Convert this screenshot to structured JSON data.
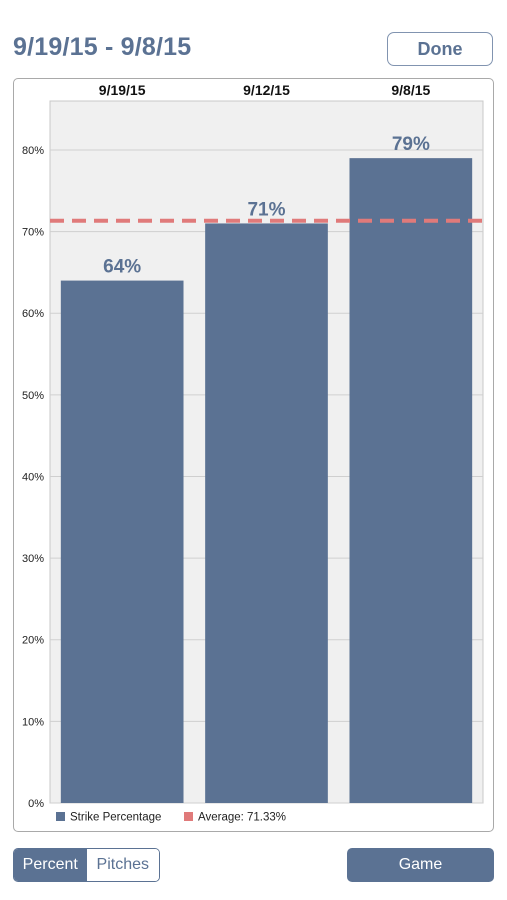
{
  "header": {
    "title": "9/19/15 - 9/8/15",
    "done_label": "Done"
  },
  "colors": {
    "bar": "#5b7293",
    "average_line": "#e07a7a",
    "plot_bg": "#f0f0f0",
    "grid": "#cfcfcf"
  },
  "chart_data": {
    "type": "bar",
    "categories": [
      "9/19/15",
      "9/12/15",
      "9/8/15"
    ],
    "series": [
      {
        "name": "Strike Percentage",
        "values": [
          64,
          71,
          79
        ]
      }
    ],
    "data_labels": [
      "64%",
      "71%",
      "79%"
    ],
    "average": {
      "label": "Average: 71.33%",
      "value": 71.33
    },
    "ylim": [
      0,
      86
    ],
    "yticks": [
      0,
      10,
      20,
      30,
      40,
      50,
      60,
      70,
      80
    ],
    "ytick_labels": [
      "0%",
      "10%",
      "20%",
      "30%",
      "40%",
      "50%",
      "60%",
      "70%",
      "80%"
    ],
    "legend": [
      "Strike Percentage",
      "Average: 71.33%"
    ],
    "legend_position": "bottom-left",
    "grid": true
  },
  "footer": {
    "segments": [
      {
        "label": "Percent",
        "active": true
      },
      {
        "label": "Pitches",
        "active": false
      }
    ],
    "game_label": "Game"
  }
}
